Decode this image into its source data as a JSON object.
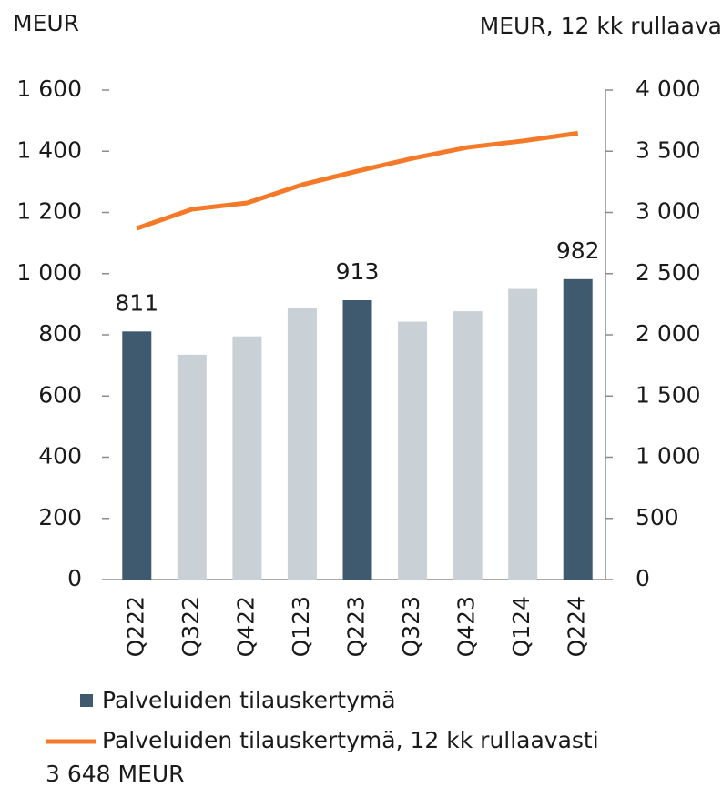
{
  "chart_data": {
    "type": "bar_line",
    "y_label": "MEUR",
    "y2_label": "MEUR, 12 kk rullaava",
    "categories": [
      "Q222",
      "Q322",
      "Q422",
      "Q123",
      "Q223",
      "Q323",
      "Q423",
      "Q124",
      "Q224"
    ],
    "series": [
      {
        "name": "Palveluiden tilauskertymä",
        "type": "bar",
        "color": "#3f5a6e",
        "colors": [
          "#3f5a6e",
          "#c9d0d6",
          "#c9d0d6",
          "#c9d0d6",
          "#3f5a6e",
          "#c9d0d6",
          "#c9d0d6",
          "#c9d0d6",
          "#3f5a6e"
        ],
        "values": [
          811,
          735,
          795,
          888,
          913,
          843,
          877,
          950,
          982
        ],
        "value_labels": [
          "811",
          null,
          null,
          null,
          "913",
          null,
          null,
          null,
          "982"
        ]
      },
      {
        "name": "Palveluiden tilauskertymä, 12 kk rullaavasti",
        "type": "line",
        "axis": "y2",
        "color": "#f47a2a",
        "values": [
          2870,
          3026,
          3078,
          3227,
          3338,
          3442,
          3532,
          3584,
          3648
        ]
      }
    ],
    "legend_note": "3 648 MEUR",
    "ylim": [
      0,
      1600
    ],
    "yticks": [
      0,
      200,
      400,
      600,
      800,
      {
        "value": 1000,
        "label": "1 000"
      },
      {
        "value": 1200,
        "label": "1 200"
      },
      {
        "value": 1400,
        "label": "1 400"
      },
      {
        "value": 1600,
        "label": "1 600"
      }
    ],
    "y2lim": [
      0,
      4000
    ],
    "y2ticks": [
      0,
      500,
      {
        "value": 1000,
        "label": "1 000"
      },
      {
        "value": 1500,
        "label": "1 500"
      },
      {
        "value": 2000,
        "label": "2 000"
      },
      {
        "value": 2500,
        "label": "2 500"
      },
      {
        "value": 3000,
        "label": "3 000"
      },
      {
        "value": 3500,
        "label": "3 500"
      },
      {
        "value": 4000,
        "label": "4 000"
      }
    ]
  }
}
